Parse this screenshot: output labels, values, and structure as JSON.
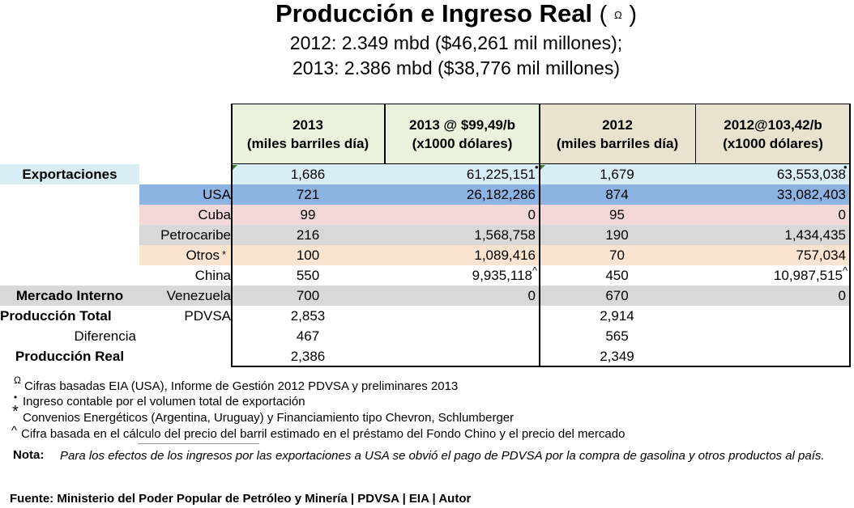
{
  "title": {
    "text": "Producción e Ingreso Real",
    "paren_open": "(",
    "symbol": "Ω",
    "paren_close": ")",
    "line1": "2012: 2.349 mbd ($46,261 mil millones);",
    "line2": "2013: 2.386 mbd ($38,776 mil millones)"
  },
  "headers": [
    {
      "line1": "2013",
      "line2": "(miles barriles día)"
    },
    {
      "line1": "2013 @ $99,49/b",
      "line2": "(x1000 dólares)"
    },
    {
      "line1": "2012",
      "line2": "(miles barriles día)"
    },
    {
      "line1": "2012@103,42/b",
      "line2": "(x1000  dólares)"
    }
  ],
  "rows": [
    {
      "a": "Exportaciones",
      "b": "",
      "v2013": "1,686",
      "usd2013": "61,225,151",
      "v2012": "1,679",
      "usd2012": "63,553,038"
    },
    {
      "a": "",
      "b": "USA",
      "v2013": "721",
      "usd2013": "26,182,286",
      "v2012": "874",
      "usd2012": "33,082,403"
    },
    {
      "a": "",
      "b": "Cuba",
      "v2013": "99",
      "usd2013": "0",
      "v2012": "95",
      "usd2012": "0"
    },
    {
      "a": "",
      "b": "Petrocaribe",
      "v2013": "216",
      "usd2013": "1,568,758",
      "v2012": "190",
      "usd2012": "1,434,435"
    },
    {
      "a": "",
      "b": "Otros",
      "b_mark": "*",
      "v2013": "100",
      "usd2013": "1,089,416",
      "v2012": "70",
      "usd2012": "757,034"
    },
    {
      "a": "",
      "b": "China",
      "v2013": "550",
      "usd2013": "9,935,118",
      "v2012": "450",
      "usd2012": "10,987,515"
    },
    {
      "a": "Mercado Interno",
      "b": "Venezuela",
      "v2013": "700",
      "usd2013": "0",
      "v2012": "670",
      "usd2012": "0"
    },
    {
      "a": "Producción Total",
      "b": "PDVSA",
      "v2013": "2,853",
      "usd2013": "",
      "v2012": "2,914",
      "usd2012": ""
    },
    {
      "a": "Diferencia",
      "b": "",
      "v2013": "467",
      "usd2013": "",
      "v2012": "565",
      "usd2012": ""
    },
    {
      "a": "Producción Real",
      "b": "",
      "v2013": "2,386",
      "usd2013": "",
      "v2012": "2,349",
      "usd2012": ""
    }
  ],
  "marks": {
    "dot": "•",
    "caret": "^",
    "star": "*",
    "omega": "Ω"
  },
  "footnotes": [
    {
      "symbol": "Ω",
      "text": "Cifras basadas EIA (USA), Informe de Gestión 2012 PDVSA y preliminares 2013"
    },
    {
      "symbol": "•",
      "text": "Ingreso contable por el volumen total de exportación"
    },
    {
      "symbol": "*",
      "text": "Convenios Energéticos (Argentina, Uruguay) y Financiamiento tipo  Chevron, Schlumberger"
    },
    {
      "symbol": "^",
      "text": "Cifra basada en el cálculo del precio del barril estimado en el préstamo del Fondo Chino y el precio del mercado"
    }
  ],
  "nota": {
    "label": "Nota:",
    "text": "Para los efectos de los ingresos por las exportaciones a USA se obvió  el pago de PDVSA por la compra de gasolina y otros productos al país."
  },
  "fuente": "Fuente: Ministerio del Poder Popular de Petróleo y Minería | PDVSA | EIA |  Autor",
  "colors": {
    "exportaciones_row": "#d9eef4",
    "usa_row": "#8db3e2",
    "cuba_row": "#f4d8d8",
    "petrocaribe_row": "#d8d8d8",
    "otros_row": "#fbe4cf",
    "mercado_row": "#d8d8d8",
    "header_green": "#e9f3db",
    "header_tan": "#e8e2cf"
  }
}
